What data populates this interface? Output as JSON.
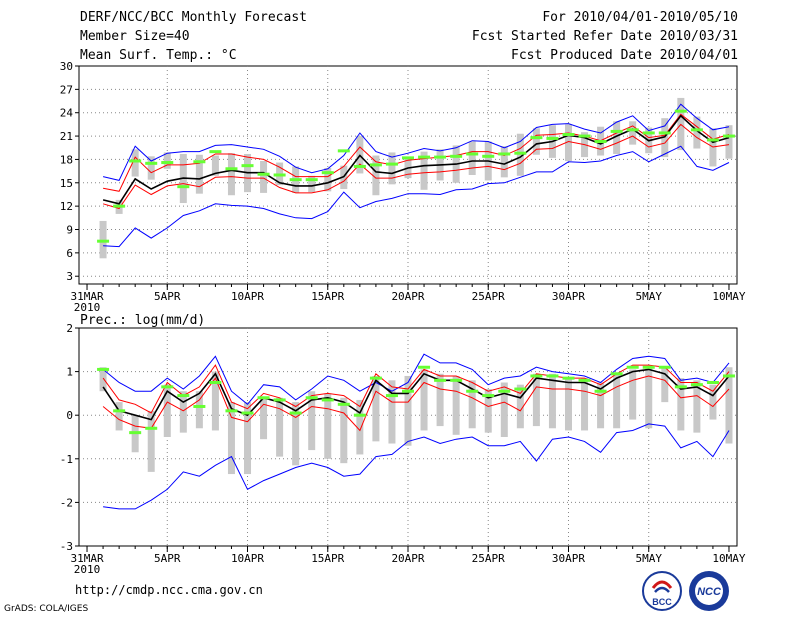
{
  "header": {
    "title": "DERF/NCC/BCC Monthly Forecast",
    "member": "Member Size=40",
    "variable": "Mean Surf. Temp.: °C",
    "period": "For 2010/04/01-2010/05/10",
    "started": "Fcst Started Refer Date 2010/03/31",
    "produced": "Fcst Produced Date 2010/04/01"
  },
  "footer": {
    "url": "http://cmdp.ncc.cma.gov.cn",
    "credit": "GrADS: COLA/IGES"
  },
  "logos": {
    "bcc": "BCC",
    "ncc": "NCC"
  },
  "colors": {
    "max": "#0000ff",
    "min": "#ff0000",
    "mean": "#000000",
    "obs": "#66ff33",
    "box": "#c8c8c8",
    "grid": "#888888"
  },
  "chart_data": [
    {
      "type": "line",
      "title": "Mean Surf. Temp.: °C",
      "xlabel": "",
      "ylabel": "°C",
      "ylim": [
        2,
        30
      ],
      "yticks": [
        3,
        6,
        9,
        12,
        15,
        18,
        21,
        24,
        27,
        30
      ],
      "x_tick_labels": [
        {
          "day": 0,
          "label": "31MAR"
        },
        {
          "day": 5,
          "label": "5APR"
        },
        {
          "day": 10,
          "label": "10APR"
        },
        {
          "day": 15,
          "label": "15APR"
        },
        {
          "day": 20,
          "label": "20APR"
        },
        {
          "day": 25,
          "label": "25APR"
        },
        {
          "day": 30,
          "label": "30APR"
        },
        {
          "day": 35,
          "label": "5MAY"
        },
        {
          "day": 40,
          "label": "10MAY"
        }
      ],
      "x_sublabel": "2010",
      "days": [
        1,
        2,
        3,
        4,
        5,
        6,
        7,
        8,
        9,
        10,
        11,
        12,
        13,
        14,
        15,
        16,
        17,
        18,
        19,
        20,
        21,
        22,
        23,
        24,
        25,
        26,
        27,
        28,
        29,
        30,
        31,
        32,
        33,
        34,
        35,
        36,
        37,
        38,
        39,
        40
      ],
      "series": [
        {
          "name": "ensemble max",
          "color": "#0000ff",
          "values": [
            15.8,
            15.3,
            19.7,
            17.8,
            18.8,
            19.0,
            19.0,
            19.8,
            19.9,
            19.6,
            19.3,
            18.4,
            17.0,
            16.3,
            16.8,
            18.5,
            21.4,
            19.0,
            18.3,
            18.8,
            19.4,
            19.1,
            19.5,
            20.4,
            20.3,
            19.5,
            20.3,
            22.1,
            22.5,
            22.6,
            21.9,
            21.4,
            22.8,
            23.6,
            21.7,
            22.3,
            25.1,
            23.3,
            21.8,
            22.2
          ]
        },
        {
          "name": "upper",
          "color": "#ff0000",
          "values": [
            14.3,
            13.9,
            18.3,
            16.3,
            17.3,
            17.3,
            17.5,
            18.7,
            18.7,
            18.3,
            18.0,
            17.0,
            15.8,
            15.8,
            15.8,
            17.1,
            19.6,
            17.7,
            17.3,
            17.9,
            18.1,
            18.3,
            18.5,
            19.0,
            19.0,
            18.5,
            19.4,
            21.1,
            21.2,
            21.4,
            21.0,
            20.4,
            21.4,
            22.3,
            20.8,
            21.1,
            23.8,
            22.2,
            20.6,
            21.2
          ]
        },
        {
          "name": "ensemble mean",
          "color": "#000000",
          "values": [
            12.8,
            12.3,
            15.5,
            14.2,
            15.2,
            15.6,
            15.5,
            16.2,
            16.6,
            16.3,
            16.3,
            15.0,
            14.6,
            14.6,
            15.0,
            15.8,
            18.5,
            16.4,
            16.2,
            16.9,
            17.2,
            17.3,
            17.4,
            17.8,
            17.8,
            17.4,
            18.3,
            20.0,
            20.3,
            21.1,
            20.8,
            20.0,
            21.0,
            21.9,
            20.4,
            20.9,
            23.6,
            21.7,
            20.2,
            20.8
          ]
        },
        {
          "name": "lower",
          "color": "#ff0000",
          "values": [
            12.3,
            11.7,
            14.7,
            13.5,
            14.6,
            14.9,
            14.5,
            15.7,
            15.8,
            15.6,
            15.6,
            14.4,
            13.7,
            13.7,
            14.1,
            15.2,
            17.4,
            15.6,
            15.6,
            16.1,
            16.3,
            16.4,
            16.6,
            16.9,
            17.1,
            16.7,
            17.5,
            19.3,
            19.4,
            20.3,
            19.9,
            19.3,
            20.1,
            21.0,
            19.6,
            20.1,
            22.5,
            20.8,
            19.6,
            19.9
          ]
        },
        {
          "name": "ensemble min",
          "color": "#0000ff",
          "values": [
            6.9,
            6.8,
            9.2,
            7.9,
            9.2,
            10.8,
            11.4,
            12.3,
            12.1,
            12.0,
            11.7,
            11.0,
            10.5,
            10.4,
            11.3,
            13.8,
            11.8,
            12.6,
            13.0,
            13.6,
            13.6,
            13.5,
            14.1,
            14.2,
            14.9,
            15.0,
            15.7,
            16.4,
            16.4,
            17.7,
            17.6,
            17.8,
            18.5,
            19.0,
            17.7,
            18.7,
            19.7,
            17.1,
            16.6,
            17.6
          ]
        }
      ],
      "box_range": [
        [
          5.3,
          10.1
        ],
        [
          11.0,
          12.8
        ],
        [
          15.8,
          19.3
        ],
        [
          15.4,
          18.4
        ],
        [
          16.8,
          18.9
        ],
        [
          12.4,
          18.7
        ],
        [
          13.6,
          18.6
        ],
        [
          15.9,
          18.5
        ],
        [
          13.4,
          18.8
        ],
        [
          13.8,
          18.7
        ],
        [
          13.7,
          17.8
        ],
        [
          14.7,
          17.6
        ],
        [
          13.7,
          17.1
        ],
        [
          13.8,
          15.9
        ],
        [
          13.9,
          16.9
        ],
        [
          14.2,
          17.2
        ],
        [
          16.2,
          21.0
        ],
        [
          13.4,
          18.5
        ],
        [
          14.8,
          18.9
        ],
        [
          15.6,
          18.1
        ],
        [
          14.1,
          19.0
        ],
        [
          15.3,
          19.3
        ],
        [
          15.0,
          19.8
        ],
        [
          16.0,
          20.3
        ],
        [
          15.3,
          20.3
        ],
        [
          15.7,
          19.7
        ],
        [
          15.9,
          21.3
        ],
        [
          18.6,
          22.0
        ],
        [
          18.2,
          22.4
        ],
        [
          17.8,
          22.5
        ],
        [
          18.3,
          21.5
        ],
        [
          18.5,
          22.2
        ],
        [
          18.7,
          22.9
        ],
        [
          19.9,
          22.9
        ],
        [
          18.8,
          22.1
        ],
        [
          18.3,
          23.3
        ],
        [
          19.2,
          25.9
        ],
        [
          19.4,
          23.5
        ],
        [
          17.1,
          22.0
        ],
        [
          18.1,
          22.4
        ]
      ],
      "observed": [
        7.5,
        12.0,
        17.8,
        17.5,
        17.6,
        14.5,
        17.7,
        19.0,
        16.8,
        17.2,
        16.1,
        16.0,
        15.4,
        15.4,
        16.3,
        19.1,
        17.1,
        17.3,
        17.4,
        18.2,
        18.3,
        18.3,
        18.4,
        18.7,
        18.4,
        18.7,
        18.8,
        20.8,
        20.7,
        21.2,
        21.0,
        20.3,
        21.6,
        21.8,
        21.4,
        21.4,
        24.2,
        21.8,
        20.5,
        21.0
      ]
    },
    {
      "type": "line",
      "title": "Prec.: log(mm/d)",
      "xlabel": "",
      "ylabel": "log(mm/d)",
      "ylim": [
        -3,
        2
      ],
      "yticks": [
        -3,
        -2,
        -1,
        0,
        1,
        2
      ],
      "x_tick_labels": [
        {
          "day": 0,
          "label": "31MAR"
        },
        {
          "day": 5,
          "label": "5APR"
        },
        {
          "day": 10,
          "label": "10APR"
        },
        {
          "day": 15,
          "label": "15APR"
        },
        {
          "day": 20,
          "label": "20APR"
        },
        {
          "day": 25,
          "label": "25APR"
        },
        {
          "day": 30,
          "label": "30APR"
        },
        {
          "day": 35,
          "label": "5MAY"
        },
        {
          "day": 40,
          "label": "10MAY"
        }
      ],
      "x_sublabel": "2010",
      "days": [
        1,
        2,
        3,
        4,
        5,
        6,
        7,
        8,
        9,
        10,
        11,
        12,
        13,
        14,
        15,
        16,
        17,
        18,
        19,
        20,
        21,
        22,
        23,
        24,
        25,
        26,
        27,
        28,
        29,
        30,
        31,
        32,
        33,
        34,
        35,
        36,
        37,
        38,
        39,
        40
      ],
      "series": [
        {
          "name": "ensemble max",
          "color": "#0000ff",
          "values": [
            1.05,
            0.75,
            0.55,
            0.55,
            0.85,
            0.6,
            0.9,
            1.35,
            0.55,
            0.25,
            0.7,
            0.65,
            0.35,
            0.6,
            0.9,
            0.8,
            0.55,
            0.75,
            0.55,
            0.75,
            1.4,
            1.2,
            1.2,
            1.05,
            0.7,
            0.85,
            0.9,
            1.1,
            1.0,
            0.95,
            0.9,
            0.75,
            1.05,
            1.3,
            1.35,
            1.3,
            0.8,
            0.85,
            0.75,
            1.2
          ]
        },
        {
          "name": "upper",
          "color": "#ff0000",
          "values": [
            0.85,
            0.35,
            0.25,
            0.05,
            0.75,
            0.45,
            0.65,
            1.15,
            0.3,
            0.15,
            0.5,
            0.4,
            0.2,
            0.45,
            0.5,
            0.45,
            0.2,
            0.95,
            0.65,
            0.6,
            1.05,
            0.9,
            0.9,
            0.75,
            0.55,
            0.65,
            0.5,
            0.95,
            0.9,
            0.85,
            0.85,
            0.7,
            0.95,
            1.15,
            1.15,
            1.1,
            0.75,
            0.75,
            0.55,
            1.0
          ]
        },
        {
          "name": "ensemble mean",
          "color": "#000000",
          "values": [
            0.65,
            0.1,
            0.0,
            -0.1,
            0.55,
            0.3,
            0.5,
            0.95,
            0.15,
            0.0,
            0.4,
            0.3,
            0.1,
            0.35,
            0.4,
            0.3,
            0.05,
            0.8,
            0.5,
            0.5,
            0.95,
            0.8,
            0.8,
            0.6,
            0.4,
            0.5,
            0.4,
            0.85,
            0.8,
            0.75,
            0.75,
            0.6,
            0.85,
            1.0,
            1.05,
            0.95,
            0.6,
            0.65,
            0.45,
            0.9
          ]
        },
        {
          "name": "lower",
          "color": "#ff0000",
          "values": [
            0.2,
            -0.1,
            -0.25,
            -0.3,
            0.3,
            0.1,
            0.35,
            0.85,
            -0.05,
            -0.15,
            0.25,
            0.15,
            -0.05,
            0.2,
            0.15,
            0.05,
            -0.35,
            0.55,
            0.3,
            0.3,
            0.75,
            0.6,
            0.55,
            0.4,
            0.2,
            0.3,
            0.1,
            0.65,
            0.6,
            0.6,
            0.55,
            0.45,
            0.65,
            0.8,
            0.9,
            0.8,
            0.4,
            0.45,
            0.2,
            0.6
          ]
        },
        {
          "name": "ensemble min",
          "color": "#0000ff",
          "values": [
            -2.1,
            -2.15,
            -2.15,
            -1.95,
            -1.7,
            -1.3,
            -1.4,
            -1.15,
            -0.95,
            -1.7,
            -1.5,
            -1.35,
            -1.2,
            -1.1,
            -1.2,
            -1.4,
            -1.35,
            -0.95,
            -0.9,
            -0.6,
            -0.5,
            -0.65,
            -0.55,
            -0.5,
            -0.7,
            -0.7,
            -0.6,
            -1.05,
            -0.55,
            -0.5,
            -0.6,
            -0.85,
            -0.4,
            -0.35,
            -0.2,
            -0.25,
            -0.75,
            -0.6,
            -0.95,
            -0.35
          ]
        },
        {
          "name": "observed sparse",
          "color": "#66ff33",
          "values": []
        }
      ],
      "box_range": [
        [
          0.55,
          1.1
        ],
        [
          -0.35,
          0.3
        ],
        [
          -0.85,
          0.0
        ],
        [
          -1.3,
          0.1
        ],
        [
          -0.5,
          0.7
        ],
        [
          -0.4,
          0.55
        ],
        [
          -0.3,
          0.55
        ],
        [
          -0.35,
          1.0
        ],
        [
          -1.35,
          0.3
        ],
        [
          -1.35,
          0.3
        ],
        [
          -0.55,
          0.4
        ],
        [
          -0.95,
          0.4
        ],
        [
          -1.15,
          0.3
        ],
        [
          -0.8,
          0.55
        ],
        [
          -1.0,
          0.5
        ],
        [
          -1.1,
          0.4
        ],
        [
          -0.9,
          0.35
        ],
        [
          -0.6,
          0.9
        ],
        [
          -0.65,
          0.8
        ],
        [
          -0.7,
          0.9
        ],
        [
          -0.35,
          1.05
        ],
        [
          -0.25,
          0.95
        ],
        [
          -0.45,
          0.9
        ],
        [
          -0.3,
          0.8
        ],
        [
          -0.4,
          0.6
        ],
        [
          -0.5,
          0.75
        ],
        [
          -0.3,
          0.7
        ],
        [
          -0.25,
          0.95
        ],
        [
          -0.3,
          0.95
        ],
        [
          -0.35,
          0.85
        ],
        [
          -0.35,
          0.85
        ],
        [
          -0.3,
          0.75
        ],
        [
          -0.3,
          0.95
        ],
        [
          -0.1,
          1.05
        ],
        [
          -0.3,
          1.1
        ],
        [
          0.3,
          1.1
        ],
        [
          -0.35,
          0.85
        ],
        [
          -0.4,
          0.8
        ],
        [
          -0.1,
          0.7
        ],
        [
          -0.65,
          1.1
        ]
      ],
      "observed": [
        1.05,
        0.1,
        -0.4,
        -0.3,
        0.65,
        0.45,
        0.2,
        0.75,
        0.1,
        0.05,
        0.4,
        0.35,
        0.05,
        0.4,
        0.35,
        0.25,
        0.0,
        0.85,
        0.45,
        0.55,
        1.1,
        0.8,
        0.8,
        0.55,
        0.45,
        0.55,
        0.6,
        0.9,
        0.9,
        0.85,
        0.8,
        0.55,
        0.95,
        1.1,
        1.1,
        1.1,
        0.65,
        0.7,
        0.75,
        0.9
      ]
    }
  ]
}
